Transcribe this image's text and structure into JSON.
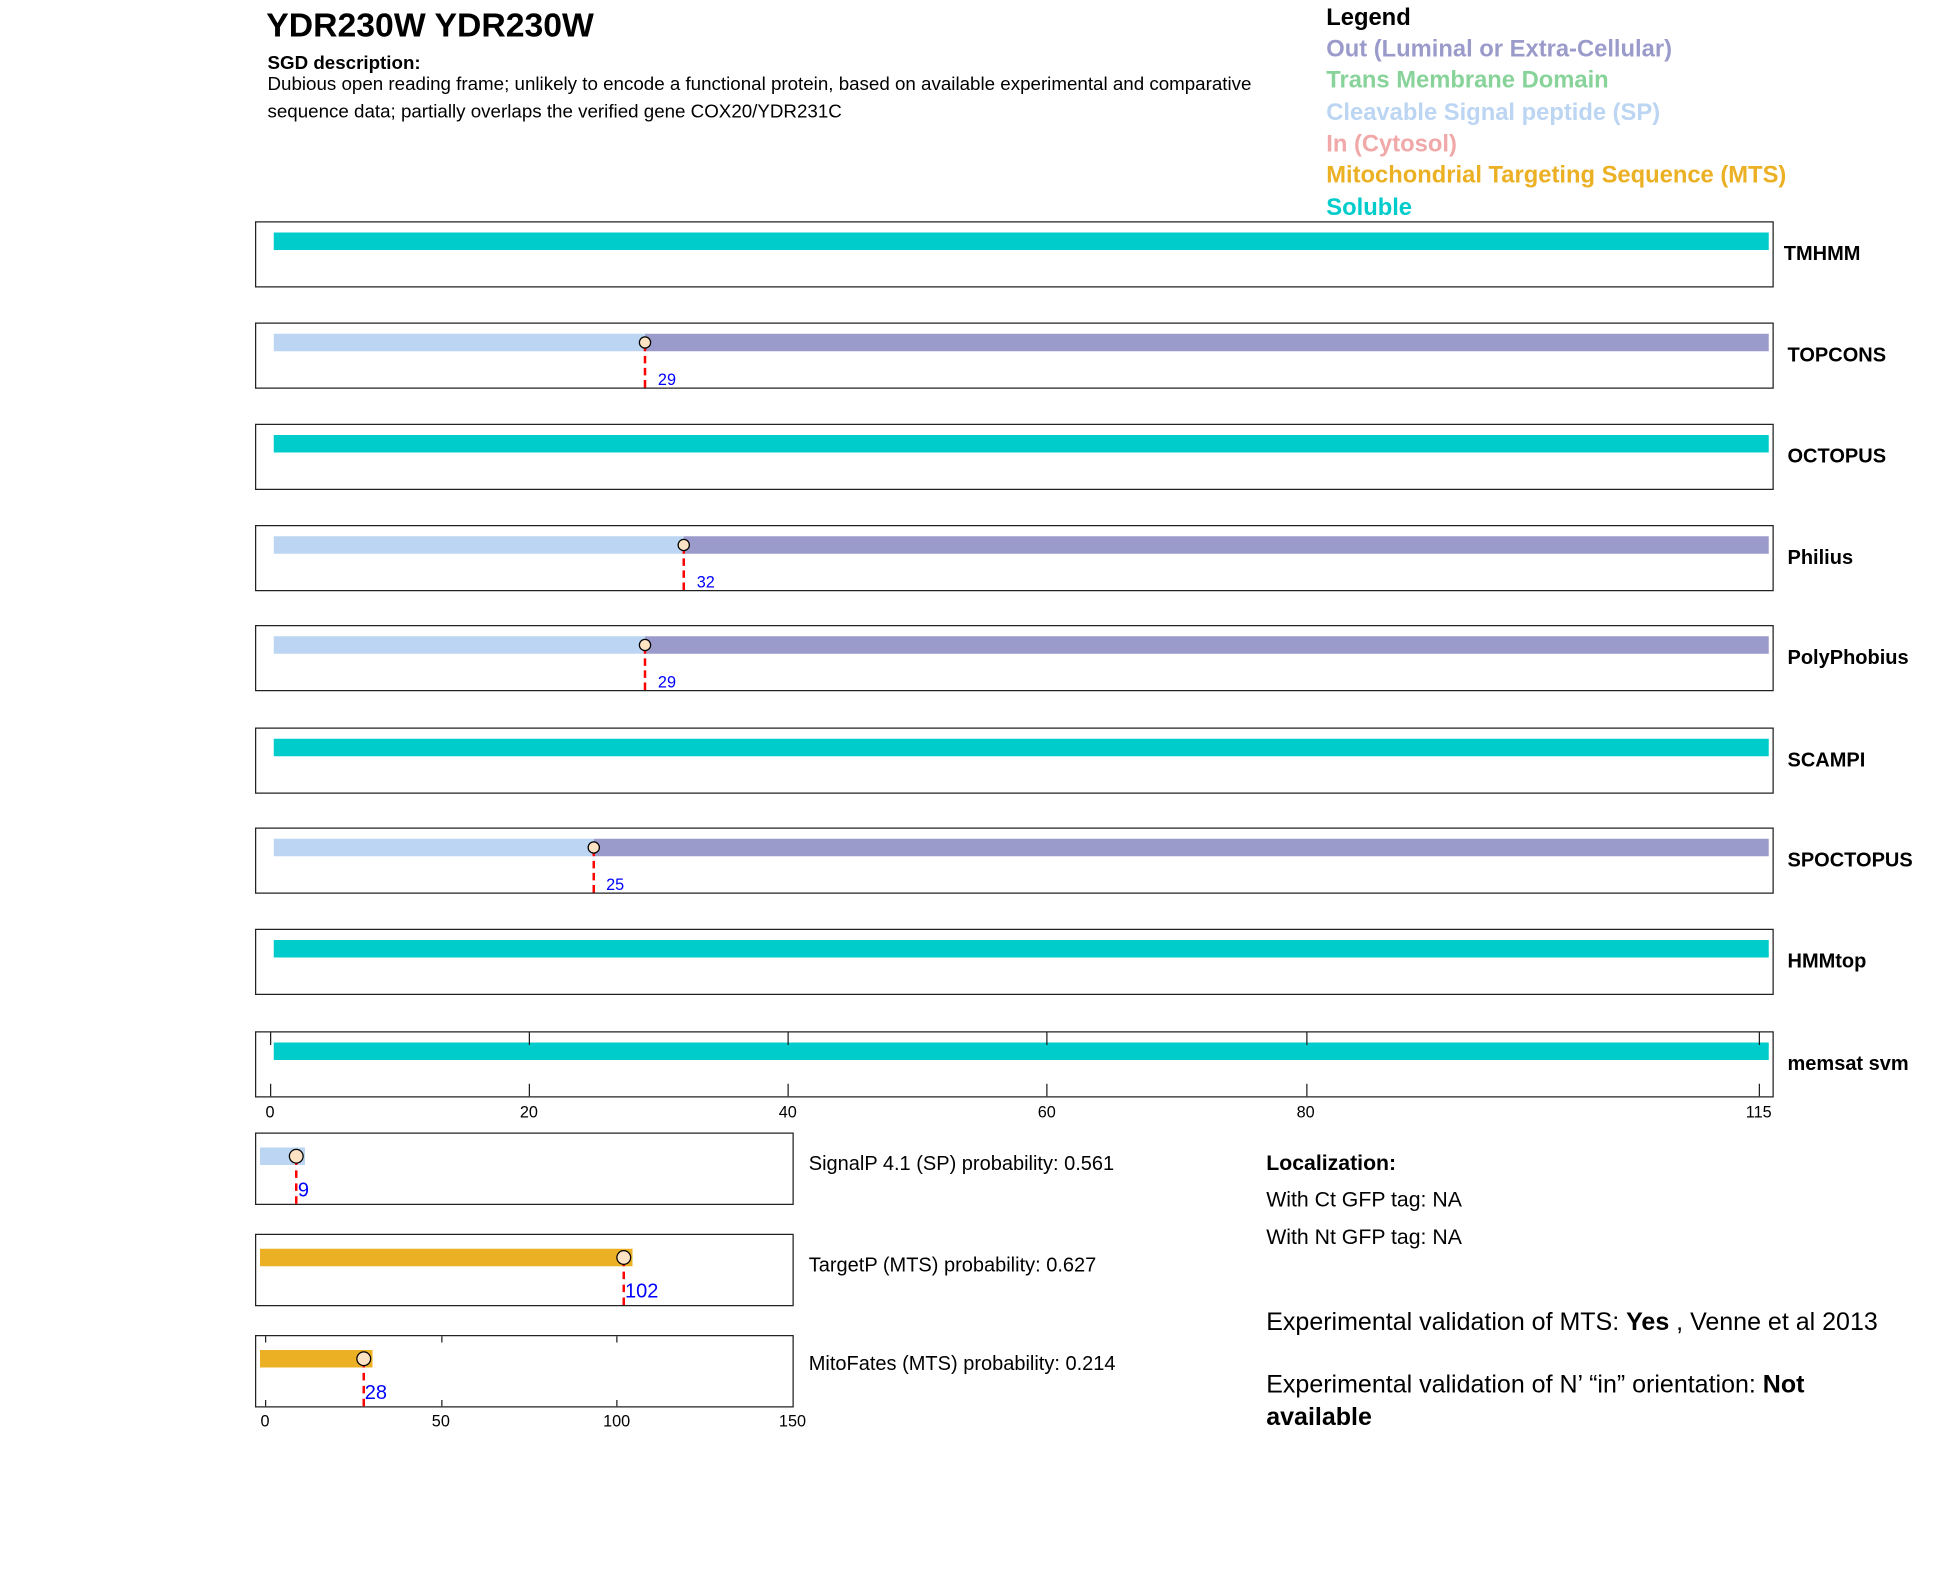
{
  "header": {
    "title": "YDR230W  YDR230W",
    "sgd_heading": "SGD description:",
    "sgd_description": "Dubious open reading frame; unlikely to encode a functional protein, based on available experimental and comparative sequence data; partially overlaps the verified gene COX20/YDR231C"
  },
  "legend": {
    "heading": "Legend",
    "items": [
      {
        "label": "Out (Luminal or Extra-Cellular)",
        "color": "#9B9BCB"
      },
      {
        "label": "Trans Membrane Domain",
        "color": "#88D39A"
      },
      {
        "label": "Cleavable Signal peptide (SP)",
        "color": "#BBD5F2"
      },
      {
        "label": "In (Cytosol)",
        "color": "#F0A8A8"
      },
      {
        "label": "Mitochondrial Targeting Sequence (MTS)",
        "color": "#EBB023"
      },
      {
        "label": "Soluble",
        "color": "#00CCCC"
      }
    ]
  },
  "chart_data": [
    {
      "type": "topology-tracks",
      "protein_length": 115,
      "xlim": [
        0,
        115
      ],
      "xticks": [
        0,
        20,
        40,
        60,
        80,
        115
      ],
      "tracks": [
        {
          "name": "TMHMM",
          "segments": [
            {
              "type": "Soluble",
              "start": 0,
              "end": 115
            }
          ]
        },
        {
          "name": "TOPCONS",
          "cleavage": 29,
          "segments": [
            {
              "type": "SP",
              "start": 0,
              "end": 29
            },
            {
              "type": "Out",
              "start": 29,
              "end": 115
            }
          ]
        },
        {
          "name": "OCTOPUS",
          "segments": [
            {
              "type": "Soluble",
              "start": 0,
              "end": 115
            }
          ]
        },
        {
          "name": "Philius",
          "cleavage": 32,
          "segments": [
            {
              "type": "SP",
              "start": 0,
              "end": 32
            },
            {
              "type": "Out",
              "start": 32,
              "end": 115
            }
          ]
        },
        {
          "name": "PolyPhobius",
          "cleavage": 29,
          "segments": [
            {
              "type": "SP",
              "start": 0,
              "end": 29
            },
            {
              "type": "Out",
              "start": 29,
              "end": 115
            }
          ]
        },
        {
          "name": "SCAMPI",
          "segments": [
            {
              "type": "Soluble",
              "start": 0,
              "end": 115
            }
          ]
        },
        {
          "name": "SPOCTOPUS",
          "cleavage": 25,
          "segments": [
            {
              "type": "SP",
              "start": 0,
              "end": 25
            },
            {
              "type": "Out",
              "start": 25,
              "end": 115
            }
          ]
        },
        {
          "name": "HMMtop",
          "segments": [
            {
              "type": "Soluble",
              "start": 0,
              "end": 115
            }
          ]
        },
        {
          "name": "memsat svm",
          "segments": [
            {
              "type": "Soluble",
              "start": 0,
              "end": 115
            }
          ]
        }
      ]
    },
    {
      "type": "prediction-tracks",
      "xlim": [
        0,
        150
      ],
      "xticks": [
        0,
        50,
        100,
        150
      ],
      "tracks": [
        {
          "label": "SignalP 4.1 (SP) probability: 0.561",
          "type": "SP",
          "cleavage": 9
        },
        {
          "label": "TargetP (MTS) probability: 0.627",
          "type": "MTS",
          "cleavage": 102
        },
        {
          "label": "MitoFates (MTS) probability: 0.214",
          "type": "MTS",
          "cleavage": 28
        }
      ]
    }
  ],
  "localization": {
    "heading": "Localization:",
    "ct": "With Ct GFP tag: NA",
    "nt": "With Nt GFP tag: NA"
  },
  "validation": {
    "mts_prefix": "Experimental validation of MTS: ",
    "mts_value": "Yes",
    "mts_suffix": " , Venne et al 2013",
    "orient_prefix": "Experimental validation of N’ “in” orientation: ",
    "orient_value": "Not available"
  },
  "colors": {
    "Out": "#9B9BCB",
    "SP": "#BBD5F2",
    "Soluble": "#00CCCC",
    "MTS": "#EBB023",
    "TM": "#88D39A",
    "In": "#F0A8A8"
  }
}
